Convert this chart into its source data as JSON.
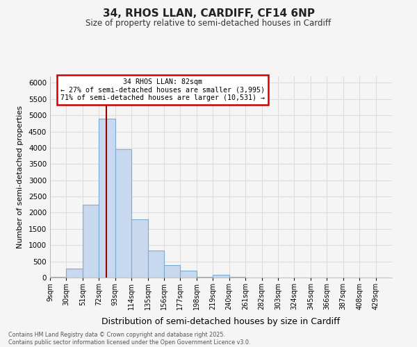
{
  "title": "34, RHOS LLAN, CARDIFF, CF14 6NP",
  "subtitle": "Size of property relative to semi-detached houses in Cardiff",
  "xlabel": "Distribution of semi-detached houses by size in Cardiff",
  "ylabel": "Number of semi-detached properties",
  "bin_labels": [
    "9sqm",
    "30sqm",
    "51sqm",
    "72sqm",
    "93sqm",
    "114sqm",
    "135sqm",
    "156sqm",
    "177sqm",
    "198sqm",
    "219sqm",
    "240sqm",
    "261sqm",
    "282sqm",
    "303sqm",
    "324sqm",
    "345sqm",
    "366sqm",
    "387sqm",
    "408sqm",
    "429sqm"
  ],
  "bin_edges": [
    9,
    30,
    51,
    72,
    93,
    114,
    135,
    156,
    177,
    198,
    219,
    240,
    261,
    282,
    303,
    324,
    345,
    366,
    387,
    408,
    429,
    450
  ],
  "bar_values": [
    30,
    280,
    2250,
    4900,
    3950,
    1800,
    840,
    380,
    215,
    30,
    80,
    30,
    10,
    5,
    2,
    1,
    0,
    0,
    0,
    0,
    0
  ],
  "bar_color": "#c8d8ee",
  "bar_edge_color": "#7aadd4",
  "ylim": [
    0,
    6200
  ],
  "yticks": [
    0,
    500,
    1000,
    1500,
    2000,
    2500,
    3000,
    3500,
    4000,
    4500,
    5000,
    5500,
    6000
  ],
  "property_value": 82,
  "vline_color": "#990000",
  "annotation_title": "34 RHOS LLAN: 82sqm",
  "annotation_line1": "← 27% of semi-detached houses are smaller (3,995)",
  "annotation_line2": "71% of semi-detached houses are larger (10,531) →",
  "annotation_box_color": "#ffffff",
  "annotation_box_edge_color": "#cc0000",
  "bg_color": "#f5f5f5",
  "plot_bg_color": "#f5f5f5",
  "grid_color": "#dddddd",
  "footer_line1": "Contains HM Land Registry data © Crown copyright and database right 2025.",
  "footer_line2": "Contains public sector information licensed under the Open Government Licence v3.0."
}
